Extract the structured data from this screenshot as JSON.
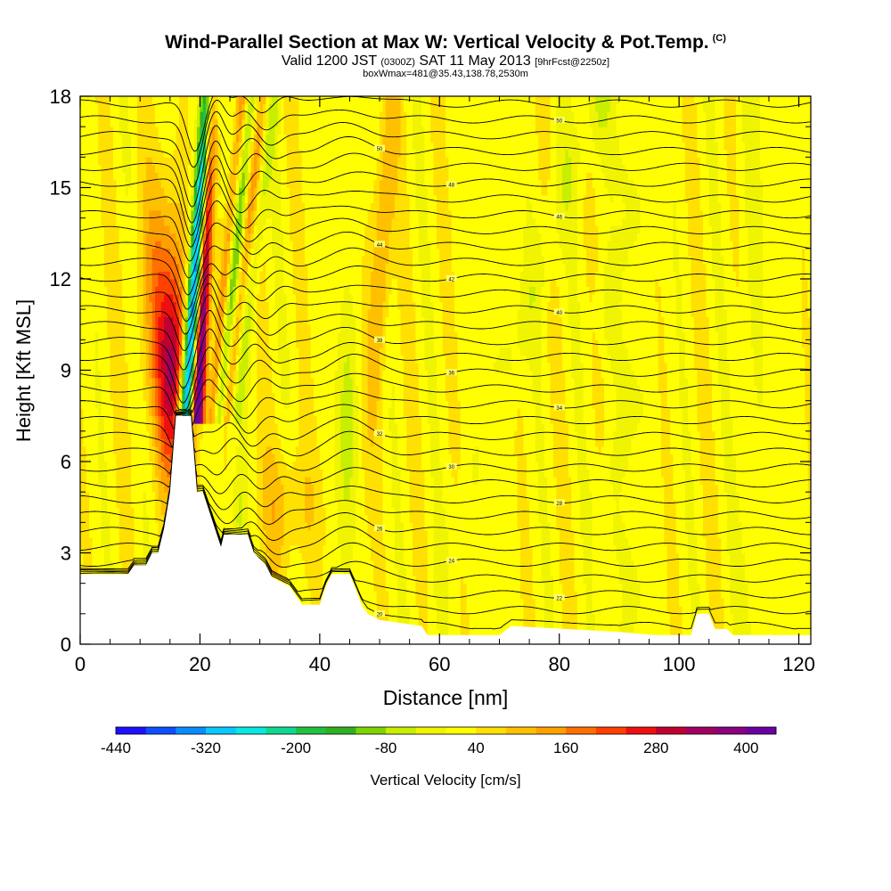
{
  "header": {
    "title": "Wind-Parallel Section at Max W: Vertical Velocity & Pot.Temp.",
    "copyright": "(C)",
    "valid_prefix": "Valid 1200 JST",
    "valid_utc": "(0300Z)",
    "valid_date": "SAT 11 May 2013",
    "forecast": "[9hrFcst@2250z]",
    "box_info": "boxWmax=481@35.43,138.78,2530m"
  },
  "colors": {
    "bins": [
      "#1f0fff",
      "#0c4fff",
      "#0a8cff",
      "#0ac8ff",
      "#0ae8e0",
      "#10d890",
      "#20c040",
      "#30b020",
      "#7dd400",
      "#c8ee00",
      "#f0f400",
      "#ffff00",
      "#ffe000",
      "#ffc000",
      "#ffa000",
      "#ff7000",
      "#ff4000",
      "#ee1010",
      "#c00030",
      "#a00060",
      "#8a0080",
      "#6a00a0"
    ],
    "terrain": "#ffffff",
    "contour": "#000000"
  },
  "chart_data": {
    "type": "heatmap",
    "title": "Wind-Parallel Section at Max W: Vertical Velocity & Pot.Temp.",
    "xlabel": "Distance [nm]",
    "ylabel": "Height [Kft MSL]",
    "xlim": [
      0,
      122
    ],
    "ylim": [
      0,
      18
    ],
    "x_ticks": [
      0,
      20,
      40,
      60,
      80,
      100,
      120
    ],
    "y_ticks": [
      0,
      3,
      6,
      9,
      12,
      15,
      18
    ],
    "colorbar": {
      "label": "Vertical Velocity [cm/s]",
      "min": -440,
      "max": 440,
      "step": 40,
      "ticks": [
        -440,
        -320,
        -200,
        -80,
        40,
        160,
        280,
        400
      ]
    },
    "contour_labels": [
      "20",
      "22",
      "24",
      "26",
      "28",
      "30",
      "32",
      "34",
      "36",
      "38",
      "40",
      "42",
      "44",
      "46",
      "48",
      "50"
    ],
    "terrain_profile": [
      [
        0,
        2.3
      ],
      [
        8,
        2.3
      ],
      [
        9,
        2.6
      ],
      [
        11,
        2.6
      ],
      [
        12,
        3.0
      ],
      [
        13,
        3.0
      ],
      [
        14,
        3.8
      ],
      [
        15,
        5.0
      ],
      [
        16,
        7.5
      ],
      [
        18.5,
        7.5
      ],
      [
        19.5,
        5.0
      ],
      [
        20.5,
        5.0
      ],
      [
        21.5,
        4.4
      ],
      [
        22.5,
        3.8
      ],
      [
        23.5,
        3.2
      ],
      [
        24,
        3.6
      ],
      [
        28,
        3.6
      ],
      [
        29,
        3.0
      ],
      [
        31,
        2.6
      ],
      [
        32,
        2.2
      ],
      [
        35,
        1.9
      ],
      [
        37,
        1.3
      ],
      [
        40,
        1.3
      ],
      [
        41,
        1.9
      ],
      [
        42,
        2.3
      ],
      [
        45,
        2.3
      ],
      [
        46,
        1.8
      ],
      [
        47,
        1.3
      ],
      [
        48,
        1.0
      ],
      [
        50,
        0.8
      ],
      [
        57,
        0.6
      ],
      [
        58,
        0.3
      ],
      [
        60,
        0.3
      ],
      [
        70,
        0.3
      ],
      [
        72,
        0.6
      ],
      [
        90,
        0.4
      ],
      [
        96,
        0.3
      ],
      [
        102,
        0.3
      ],
      [
        103,
        1.0
      ],
      [
        105,
        1.0
      ],
      [
        106,
        0.5
      ],
      [
        108,
        0.5
      ],
      [
        109,
        0.3
      ],
      [
        122,
        0.3
      ]
    ],
    "updraft_max": 481
  }
}
